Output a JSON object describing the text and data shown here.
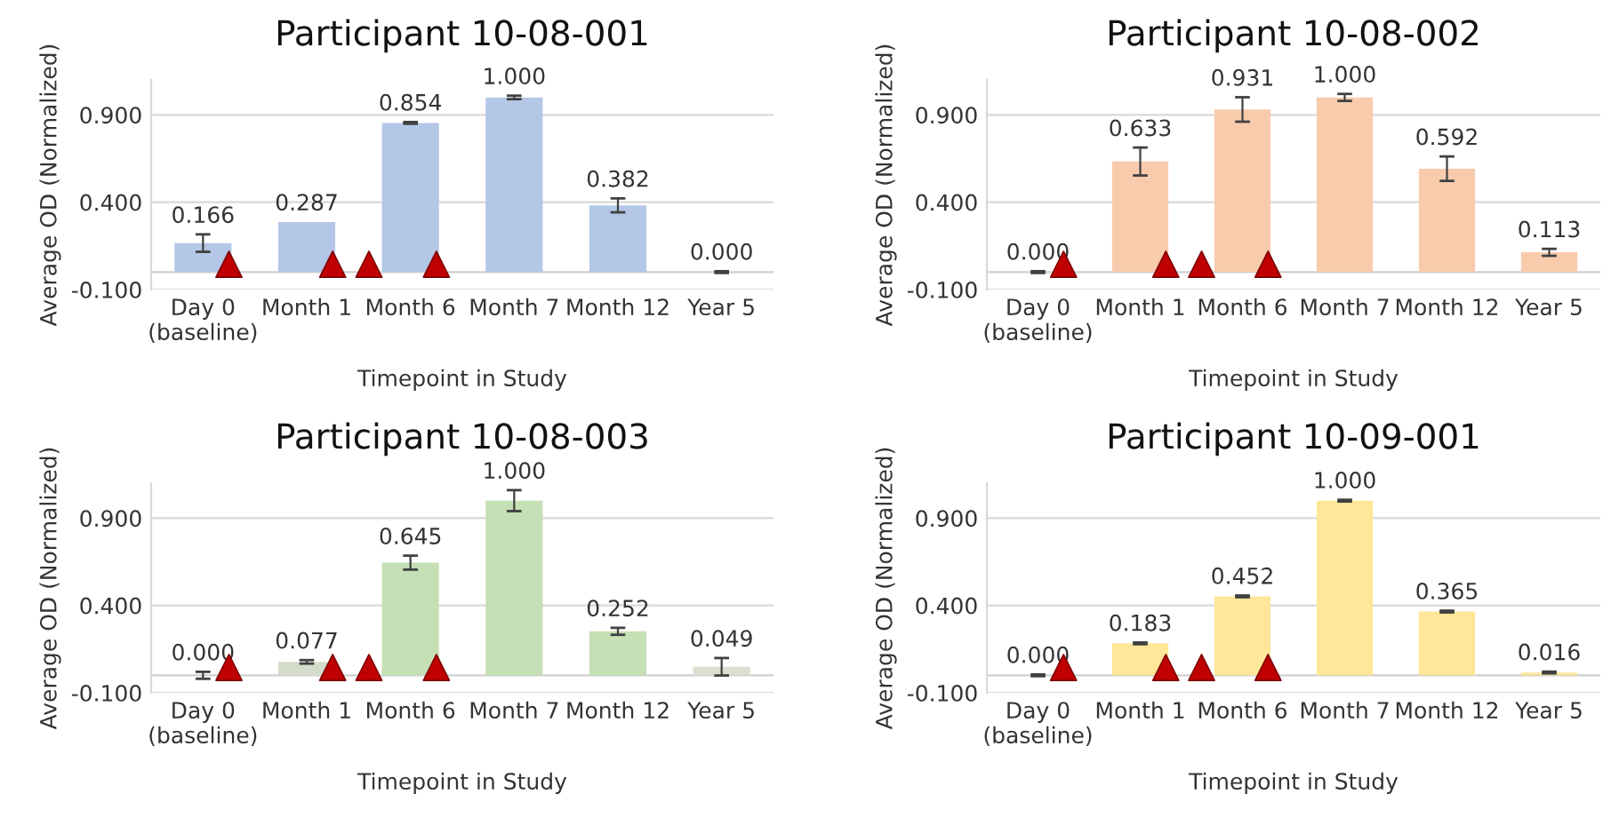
{
  "chart_data": [
    {
      "type": "bar",
      "title": "Participant 10-08-001",
      "xlabel": "Timepoint in Study",
      "ylabel": "Average OD (Normalized)",
      "categories": [
        "Day 0\n(baseline)",
        "Month 1",
        "Month 6",
        "Month 7",
        "Month 12",
        "Year 5"
      ],
      "values": [
        0.166,
        0.287,
        0.854,
        1.0,
        0.382,
        0.0
      ],
      "value_labels": [
        "0.166",
        "0.287",
        "0.854",
        "1.000",
        "0.382",
        "0.000"
      ],
      "errors": [
        0.05,
        null,
        0.005,
        0.01,
        0.04,
        0.005
      ],
      "color": "#b4c7e7",
      "ylim": [
        -0.1,
        1.1
      ],
      "yticks": [
        {
          "value": -0.1,
          "label": "-0.100"
        },
        {
          "value": 0.4,
          "label": "0.400"
        },
        {
          "value": 0.9,
          "label": "0.900"
        }
      ],
      "grid": "y"
    },
    {
      "type": "bar",
      "title": "Participant 10-08-002",
      "xlabel": "Timepoint in Study",
      "ylabel": "Average OD (Normalized)",
      "categories": [
        "Day 0\n(baseline)",
        "Month 1",
        "Month 6",
        "Month 7",
        "Month 12",
        "Year 5"
      ],
      "values": [
        0.0,
        0.633,
        0.931,
        1.0,
        0.592,
        0.113
      ],
      "value_labels": [
        "0.000",
        "0.633",
        "0.931",
        "1.000",
        "0.592",
        "0.113"
      ],
      "errors": [
        0.005,
        0.08,
        0.07,
        0.02,
        0.07,
        0.02
      ],
      "color": "#f8cbad",
      "ylim": [
        -0.1,
        1.1
      ],
      "yticks": [
        {
          "value": -0.1,
          "label": "-0.100"
        },
        {
          "value": 0.4,
          "label": "0.400"
        },
        {
          "value": 0.9,
          "label": "0.900"
        }
      ],
      "grid": "y"
    },
    {
      "type": "bar",
      "title": "Participant 10-08-003",
      "xlabel": "Timepoint in Study",
      "ylabel": "Average OD (Normalized)",
      "categories": [
        "Day 0\n(baseline)",
        "Month 1",
        "Month 6",
        "Month 7",
        "Month 12",
        "Year 5"
      ],
      "values": [
        0.0,
        0.077,
        0.645,
        1.0,
        0.252,
        0.049
      ],
      "value_labels": [
        "0.000",
        "0.077",
        "0.645",
        "1.000",
        "0.252",
        "0.049"
      ],
      "errors": [
        0.02,
        0.01,
        0.04,
        0.06,
        0.02,
        0.05
      ],
      "colors": [
        "#d6dccb",
        "#d6dccb",
        "#c5e0b4",
        "#c5e0b4",
        "#c5e0b4",
        "#dcdfcf"
      ],
      "ylim": [
        -0.1,
        1.1
      ],
      "yticks": [
        {
          "value": -0.1,
          "label": "-0.100"
        },
        {
          "value": 0.4,
          "label": "0.400"
        },
        {
          "value": 0.9,
          "label": "0.900"
        }
      ],
      "grid": "y"
    },
    {
      "type": "bar",
      "title": "Participant 10-09-001",
      "xlabel": "Timepoint in Study",
      "ylabel": "Average OD (Normalized)",
      "categories": [
        "Day 0\n(baseline)",
        "Month 1",
        "Month 6",
        "Month 7",
        "Month 12",
        "Year 5"
      ],
      "values": [
        0.0,
        0.183,
        0.452,
        1.0,
        0.365,
        0.016
      ],
      "value_labels": [
        "0.000",
        "0.183",
        "0.452",
        "1.000",
        "0.365",
        "0.016"
      ],
      "errors": [
        0.005,
        0.005,
        0.005,
        0.005,
        0.005,
        0.005
      ],
      "color": "#ffe699",
      "ylim": [
        -0.1,
        1.1
      ],
      "yticks": [
        {
          "value": -0.1,
          "label": "-0.100"
        },
        {
          "value": 0.4,
          "label": "0.400"
        },
        {
          "value": 0.9,
          "label": "0.900"
        }
      ],
      "grid": "y"
    }
  ]
}
